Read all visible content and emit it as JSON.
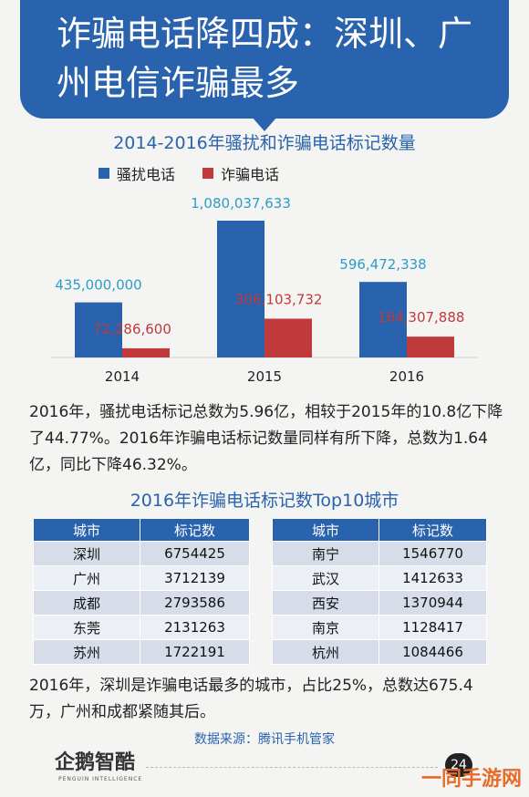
{
  "banner": {
    "title": "诈骗电话降四成：深圳、广州电信诈骗最多"
  },
  "chart_data": {
    "type": "bar",
    "title": "2014-2016年骚扰和诈骗电话标记数量",
    "categories": [
      "2014",
      "2015",
      "2016"
    ],
    "series": [
      {
        "name": "骚扰电话",
        "color": "#2a63ad",
        "values": [
          435000000,
          1080037633,
          596472338
        ],
        "labels": [
          "435,000,000",
          "1,080,037,633",
          "596,472,338"
        ]
      },
      {
        "name": "诈骗电话",
        "color": "#c0393b",
        "values": [
          72286600,
          306103732,
          164307888
        ],
        "labels": [
          "72,286,600",
          "306,103,732",
          "164,307,888"
        ]
      }
    ],
    "label_colors": {
      "harass": "#2a9dc8",
      "fraud": "#c0393b"
    }
  },
  "para1": "2016年，骚扰电话标记总数为5.96亿，相较于2015年的10.8亿下降了44.77%。2016年诈骗电话标记数量同样有所下降，总数为1.64亿，同比下降46.32%。",
  "tables": {
    "title": "2016年诈骗电话标记数Top10城市",
    "headers": [
      "城市",
      "标记数"
    ],
    "left": [
      [
        "深圳",
        "6754425"
      ],
      [
        "广州",
        "3712139"
      ],
      [
        "成都",
        "2793586"
      ],
      [
        "东莞",
        "2131263"
      ],
      [
        "苏州",
        "1722191"
      ]
    ],
    "right": [
      [
        "南宁",
        "1546770"
      ],
      [
        "武汉",
        "1412633"
      ],
      [
        "西安",
        "1370944"
      ],
      [
        "南京",
        "1128417"
      ],
      [
        "杭州",
        "1084466"
      ]
    ]
  },
  "para2": "2016年，深圳是诈骗电话最多的城市，占比25%，总数达675.4万，广州和成都紧随其后。",
  "source": "数据来源：腾讯手机管家",
  "footer": {
    "logo": "企鹅智酷",
    "logo_sub": "PENGUIN INTELLIGENCE",
    "page": "24",
    "watermark": "一同手游网"
  }
}
